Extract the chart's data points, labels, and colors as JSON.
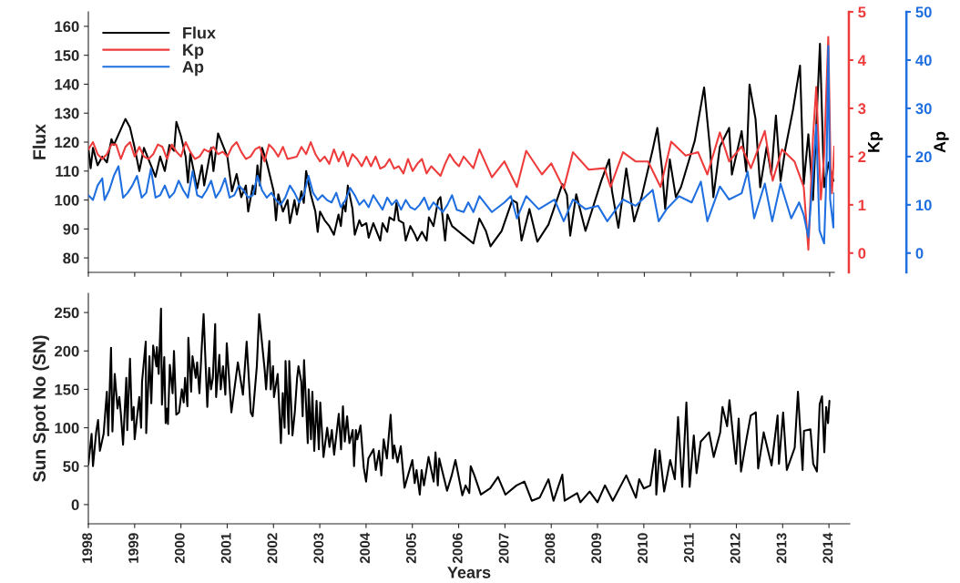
{
  "chart_data": [
    {
      "type": "line",
      "ylabel": "Flux",
      "y2label": "Kp",
      "y3label": "Ap",
      "legend": "top left",
      "tick_labels": "y",
      "grid": false,
      "xlim": [
        1998,
        2014.1
      ],
      "xticks": [
        1998,
        1999,
        2000,
        2001,
        2002,
        2003,
        2004,
        2005,
        2006,
        2007,
        2008,
        2009,
        2010,
        2011,
        2012,
        2013,
        2014
      ],
      "ylim": [
        75,
        165
      ],
      "yticks": [
        80,
        90,
        100,
        110,
        120,
        130,
        140,
        150,
        160
      ],
      "y2lim": [
        -0.4,
        5
      ],
      "y2ticks": [
        0,
        1,
        2,
        3,
        4,
        5
      ],
      "y3lim": [
        -4,
        50
      ],
      "y3ticks": [
        0,
        10,
        20,
        30,
        40,
        50
      ],
      "series": [
        {
          "name": "Flux",
          "color": "#000000",
          "axis": "y",
          "x": [
            1998.0,
            1998.05,
            1998.1,
            1998.2,
            1998.3,
            1998.4,
            1998.5,
            1998.55,
            1998.8,
            1998.9,
            1999.0,
            1999.1,
            1999.2,
            1999.35,
            1999.45,
            1999.55,
            1999.65,
            1999.75,
            1999.85,
            1999.9,
            2000.0,
            2000.1,
            2000.15,
            2000.2,
            2000.35,
            2000.45,
            2000.5,
            2000.65,
            2000.7,
            2000.8,
            2000.9,
            2001.0,
            2001.1,
            2001.2,
            2001.3,
            2001.4,
            2001.45,
            2001.55,
            2001.6,
            2001.65,
            2001.7,
            2001.75,
            2001.85,
            2002.0,
            2002.05,
            2002.1,
            2002.2,
            2002.3,
            2002.35,
            2002.45,
            2002.5,
            2002.6,
            2002.65,
            2002.7,
            2002.8,
            2002.9,
            2002.95,
            2003.0,
            2003.1,
            2003.2,
            2003.3,
            2003.4,
            2003.45,
            2003.5,
            2003.55,
            2003.6,
            2003.7,
            2003.75,
            2003.85,
            2003.9,
            2004.0,
            2004.05,
            2004.15,
            2004.3,
            2004.35,
            2004.45,
            2004.5,
            2004.6,
            2004.65,
            2004.7,
            2004.8,
            2004.85,
            2004.95,
            2005.05,
            2005.1,
            2005.2,
            2005.3,
            2005.35,
            2005.45,
            2005.55,
            2005.6,
            2005.7,
            2005.75,
            2005.85,
            2006.31,
            2006.44,
            2006.58,
            2006.68,
            2006.92,
            2007.15,
            2007.25,
            2007.35,
            2007.52,
            2007.69,
            2007.93,
            2008.23,
            2008.33,
            2008.4,
            2008.53,
            2008.73,
            2009.07,
            2009.24,
            2009.3,
            2009.44,
            2009.61,
            2009.78,
            2009.94,
            2010.18,
            2010.28,
            2010.38,
            2010.45,
            2010.55,
            2010.68,
            2010.79,
            2010.95,
            2011.09,
            2011.29,
            2011.42,
            2011.49,
            2011.63,
            2011.83,
            2011.89,
            2012.1,
            2012.2,
            2012.27,
            2012.4,
            2012.5,
            2012.64,
            2012.74,
            2012.84,
            2012.94,
            2013.04,
            2013.21,
            2013.36,
            2013.44,
            2013.54,
            2013.64,
            2013.79,
            2013.88,
            2013.98,
            2014.08
          ],
          "values": [
            118,
            111,
            118,
            112,
            115,
            113,
            121,
            119,
            128,
            125,
            118,
            110,
            118,
            112,
            108,
            115,
            110,
            119,
            117,
            127,
            122,
            115,
            106,
            116,
            104,
            112,
            105,
            118,
            110,
            123,
            119,
            115,
            103,
            109,
            101,
            105,
            96,
            105,
            102,
            112,
            105,
            118,
            113,
            103,
            93,
            102,
            96,
            100,
            92,
            100,
            95,
            103,
            99,
            110,
            102,
            96,
            89,
            96,
            93,
            91,
            88,
            95,
            91,
            99,
            96,
            105,
            97,
            88,
            93,
            91,
            92,
            87,
            92,
            86,
            92,
            89,
            94,
            93,
            99,
            93,
            92,
            86,
            91,
            88,
            86,
            89,
            86,
            94,
            91,
            100,
            101,
            86,
            95,
            91,
            85,
            93.6,
            89.3,
            84,
            89.3,
            100,
            99,
            86,
            96.9,
            85.6,
            91.5,
            105.5,
            101.7,
            87.7,
            102,
            89.3,
            106.6,
            114,
            103.3,
            90.4,
            110.9,
            92.6,
            101,
            117.4,
            124.9,
            110.9,
            96.9,
            114,
            101,
            104.4,
            113,
            120.6,
            138.9,
            117.4,
            101,
            118.4,
            124.9,
            108.8,
            123.8,
            109.8,
            139.9,
            128,
            104.4,
            118.4,
            108.8,
            129.2,
            106.6,
            117.4,
            131.3,
            146.4,
            105.5,
            122.7,
            100,
            154,
            104.4,
            113,
            106.6
          ]
        },
        {
          "name": "Kp",
          "color": "#ee3b3b",
          "axis": "y2",
          "x": [
            1998.0,
            1998.1,
            1998.2,
            1998.3,
            1998.4,
            1998.5,
            1998.6,
            1998.7,
            1998.8,
            1998.9,
            1999.0,
            1999.1,
            1999.2,
            1999.3,
            1999.4,
            1999.5,
            1999.6,
            1999.7,
            1999.8,
            1999.9,
            2000.0,
            2000.1,
            2000.2,
            2000.3,
            2000.4,
            2000.5,
            2000.6,
            2000.7,
            2000.8,
            2000.9,
            2001.0,
            2001.1,
            2001.2,
            2001.3,
            2001.4,
            2001.5,
            2001.6,
            2001.7,
            2001.8,
            2001.9,
            2002.0,
            2002.1,
            2002.2,
            2002.3,
            2002.5,
            2002.6,
            2002.7,
            2002.8,
            2002.9,
            2003.0,
            2003.1,
            2003.2,
            2003.3,
            2003.4,
            2003.5,
            2003.6,
            2003.7,
            2003.8,
            2003.9,
            2004.0,
            2004.1,
            2004.2,
            2004.3,
            2004.4,
            2004.5,
            2004.6,
            2004.7,
            2004.8,
            2004.9,
            2005.0,
            2005.1,
            2005.2,
            2005.3,
            2005.4,
            2005.5,
            2005.6,
            2005.7,
            2005.8,
            2005.9,
            2006.0,
            2006.1,
            2006.31,
            2006.44,
            2006.71,
            2006.98,
            2007.25,
            2007.45,
            2007.79,
            2007.99,
            2008.26,
            2008.46,
            2008.8,
            2009.14,
            2009.27,
            2009.54,
            2009.81,
            2010.08,
            2010.35,
            2010.58,
            2010.89,
            2011.16,
            2011.36,
            2011.63,
            2011.83,
            2012.1,
            2012.3,
            2012.6,
            2012.77,
            2012.97,
            2013.24,
            2013.44,
            2013.54,
            2013.64,
            2013.71,
            2013.81,
            2013.88,
            2013.97,
            2014.02,
            2014.05,
            2014.1
          ],
          "values": [
            2.15,
            2.3,
            2.05,
            1.95,
            2.05,
            2.25,
            2.25,
            1.95,
            2.2,
            2.3,
            2.0,
            2.2,
            2.0,
            1.95,
            2.05,
            2.25,
            2.2,
            1.95,
            2.25,
            2.1,
            2.0,
            2.3,
            2.1,
            1.95,
            2.0,
            2.15,
            2.1,
            2.2,
            2.05,
            2.1,
            2.0,
            2.2,
            2.3,
            2.1,
            1.95,
            2.0,
            2.15,
            2.2,
            1.9,
            2.25,
            2.15,
            2.0,
            2.2,
            1.95,
            2.0,
            2.2,
            2.05,
            2.3,
            2.05,
            1.9,
            2.0,
            1.85,
            2.15,
            1.9,
            2.1,
            1.8,
            2.05,
            1.95,
            1.8,
            2.0,
            1.8,
            2.0,
            1.75,
            1.8,
            1.95,
            1.75,
            1.8,
            1.65,
            1.95,
            1.7,
            1.85,
            1.95,
            1.65,
            1.8,
            1.7,
            1.6,
            1.85,
            2.05,
            1.9,
            1.8,
            2.0,
            1.76,
            2.15,
            1.57,
            1.9,
            1.37,
            2.12,
            1.63,
            1.86,
            1.34,
            2.09,
            1.73,
            1.76,
            1.37,
            2.09,
            1.9,
            1.9,
            1.37,
            2.31,
            2.02,
            2.09,
            1.63,
            2.5,
            1.9,
            2.21,
            1.76,
            2.53,
            1.5,
            2.15,
            1.9,
            1.37,
            0.07,
            2.4,
            3.44,
            1.11,
            2.02,
            4.48,
            1.76,
            1.24,
            2.21
          ]
        },
        {
          "name": "Ap",
          "color": "#1f6fe0",
          "axis": "y3",
          "x": [
            1998.0,
            1998.1,
            1998.2,
            1998.3,
            1998.35,
            1998.45,
            1998.55,
            1998.65,
            1998.75,
            1998.85,
            1998.95,
            1999.05,
            1999.15,
            1999.25,
            1999.35,
            1999.45,
            1999.55,
            1999.65,
            1999.75,
            1999.85,
            1999.95,
            2000.05,
            2000.15,
            2000.25,
            2000.35,
            2000.45,
            2000.55,
            2000.65,
            2000.75,
            2000.85,
            2000.95,
            2001.05,
            2001.15,
            2001.25,
            2001.35,
            2001.45,
            2001.55,
            2001.65,
            2001.75,
            2001.85,
            2001.95,
            2002.05,
            2002.15,
            2002.25,
            2002.35,
            2002.45,
            2002.55,
            2002.65,
            2002.75,
            2002.85,
            2002.95,
            2003.05,
            2003.15,
            2003.25,
            2003.35,
            2003.45,
            2003.55,
            2003.65,
            2003.75,
            2003.85,
            2003.95,
            2004.05,
            2004.15,
            2004.25,
            2004.35,
            2004.45,
            2004.55,
            2004.65,
            2004.75,
            2004.85,
            2004.95,
            2005.05,
            2005.15,
            2005.25,
            2005.35,
            2005.45,
            2005.55,
            2005.65,
            2005.75,
            2005.85,
            2005.95,
            2006.1,
            2006.2,
            2006.31,
            2006.44,
            2006.71,
            2006.98,
            2007.12,
            2007.25,
            2007.45,
            2007.72,
            2008.06,
            2008.26,
            2008.46,
            2008.73,
            2009.0,
            2009.2,
            2009.54,
            2009.81,
            2010.18,
            2010.31,
            2010.48,
            2010.75,
            2011.02,
            2011.22,
            2011.36,
            2011.63,
            2011.83,
            2012.1,
            2012.23,
            2012.37,
            2012.6,
            2012.76,
            2012.94,
            2013.17,
            2013.34,
            2013.44,
            2013.54,
            2013.61,
            2013.71,
            2013.78,
            2013.88,
            2013.93,
            2013.97,
            2014.01,
            2014.08,
            2014.1
          ],
          "values": [
            12,
            11,
            14,
            15.5,
            11,
            13,
            16,
            18,
            11.5,
            12.5,
            14,
            16,
            11.5,
            12.5,
            17.5,
            11.5,
            12,
            14,
            11.5,
            12.5,
            15,
            13,
            11.5,
            17,
            12,
            11.5,
            13,
            15,
            11.5,
            13,
            15.5,
            11.5,
            12,
            14,
            13,
            11.5,
            12,
            16,
            13,
            11.5,
            12.5,
            11,
            10,
            11.5,
            14,
            12.5,
            10.5,
            12,
            16,
            12.5,
            11,
            12,
            11,
            10.5,
            12.5,
            9.5,
            11,
            13.5,
            12,
            10,
            11,
            9.5,
            12,
            10.5,
            9,
            11.5,
            10,
            11,
            9,
            11,
            9.5,
            9,
            10,
            11.5,
            9,
            10.5,
            9.5,
            8.5,
            10,
            12,
            9,
            8.5,
            10.5,
            8.5,
            11.8,
            8.5,
            10.5,
            11.8,
            7.2,
            11.8,
            9.1,
            11.1,
            6.6,
            11.1,
            9.1,
            9.8,
            6.6,
            11.1,
            9.8,
            13.1,
            6.6,
            9.1,
            11.8,
            10.5,
            14.8,
            6.6,
            13.8,
            11.1,
            12.4,
            16.9,
            7.2,
            14.4,
            6.6,
            14.4,
            7.2,
            10.5,
            7.9,
            3.3,
            12.4,
            26.6,
            4.7,
            2.0,
            16.2,
            42.9,
            11.1,
            5.3,
            12.4
          ]
        }
      ]
    },
    {
      "type": "line",
      "xlabel": "Years",
      "ylabel": "Sun Spot No (SN)",
      "grid": false,
      "legend": false,
      "xlim": [
        1998,
        2014.45
      ],
      "xticks": [
        1998,
        1999,
        2000,
        2001,
        2002,
        2003,
        2004,
        2005,
        2006,
        2007,
        2008,
        2009,
        2010,
        2011,
        2012,
        2013,
        2014
      ],
      "ylim": [
        -25,
        275
      ],
      "yticks": [
        0,
        50,
        100,
        150,
        200,
        250
      ],
      "series": [
        {
          "color": "#000000",
          "x": [
            1998.0,
            1998.07,
            1998.1,
            1998.17,
            1998.21,
            1998.25,
            1998.33,
            1998.4,
            1998.43,
            1998.49,
            1998.52,
            1998.57,
            1998.63,
            1998.67,
            1998.7,
            1998.75,
            1998.82,
            1998.84,
            1998.9,
            1998.94,
            1998.98,
            1999.0,
            1999.1,
            1999.14,
            1999.16,
            1999.24,
            1999.25,
            1999.32,
            1999.36,
            1999.4,
            1999.47,
            1999.48,
            1999.52,
            1999.57,
            1999.59,
            1999.64,
            1999.67,
            1999.7,
            1999.72,
            1999.76,
            1999.82,
            1999.85,
            1999.9,
            1999.96,
            2000.02,
            2000.06,
            2000.09,
            2000.14,
            2000.16,
            2000.22,
            2000.25,
            2000.32,
            2000.35,
            2000.4,
            2000.45,
            2000.49,
            2000.57,
            2000.61,
            2000.65,
            2000.69,
            2000.74,
            2000.76,
            2000.83,
            2000.86,
            2000.91,
            2000.96,
            2000.99,
            2001.09,
            2001.23,
            2001.34,
            2001.42,
            2001.51,
            2001.55,
            2001.64,
            2001.69,
            2001.81,
            2001.84,
            2001.91,
            2001.94,
            2001.99,
            2002.01,
            2002.09,
            2002.16,
            2002.2,
            2002.24,
            2002.26,
            2002.33,
            2002.34,
            2002.41,
            2002.46,
            2002.51,
            2002.54,
            2002.6,
            2002.63,
            2002.66,
            2002.74,
            2002.76,
            2002.81,
            2002.84,
            2002.88,
            2002.93,
            2002.98,
            2003.01,
            2003.08,
            2003.16,
            2003.21,
            2003.26,
            2003.31,
            2003.41,
            2003.46,
            2003.5,
            2003.54,
            2003.59,
            2003.64,
            2003.71,
            2003.74,
            2003.78,
            2003.81,
            2003.88,
            2003.95,
            2004.0,
            2004.05,
            2004.16,
            2004.21,
            2004.28,
            2004.33,
            2004.38,
            2004.45,
            2004.53,
            2004.58,
            2004.61,
            2004.68,
            2004.75,
            2004.83,
            2005.0,
            2005.05,
            2005.09,
            2005.16,
            2005.2,
            2005.25,
            2005.35,
            2005.46,
            2005.5,
            2005.55,
            2005.58,
            2005.75,
            2005.85,
            2005.93,
            2006.08,
            2006.15,
            2006.23,
            2006.26,
            2006.34,
            2006.48,
            2006.68,
            2006.85,
            2007.01,
            2007.25,
            2007.42,
            2007.58,
            2007.75,
            2007.94,
            2008.05,
            2008.24,
            2008.29,
            2008.56,
            2008.63,
            2008.83,
            2009.0,
            2009.16,
            2009.33,
            2009.62,
            2009.83,
            2009.9,
            2010.0,
            2010.14,
            2010.25,
            2010.27,
            2010.34,
            2010.44,
            2010.57,
            2010.67,
            2010.74,
            2010.83,
            2010.92,
            2010.99,
            2011.08,
            2011.14,
            2011.23,
            2011.41,
            2011.51,
            2011.65,
            2011.7,
            2011.8,
            2011.85,
            2011.99,
            2012.05,
            2012.1,
            2012.22,
            2012.31,
            2012.42,
            2012.47,
            2012.59,
            2012.76,
            2012.89,
            2012.92,
            2013.01,
            2013.09,
            2013.26,
            2013.33,
            2013.43,
            2013.46,
            2013.6,
            2013.66,
            2013.74,
            2013.8,
            2013.85,
            2013.9,
            2013.94,
            2013.98,
            2014.01
          ],
          "values": [
            52,
            92,
            50,
            95,
            110,
            70,
            92,
            147,
            90,
            204,
            95,
            170,
            125,
            140,
            120,
            78,
            165,
            97,
            190,
            110,
            127,
            85,
            140,
            100,
            160,
            212,
            93,
            193,
            132,
            207,
            180,
            205,
            170,
            255,
            130,
            192,
            106,
            125,
            105,
            182,
            145,
            200,
            117,
            120,
            150,
            133,
            165,
            128,
            217,
            147,
            193,
            165,
            185,
            145,
            205,
            248,
            127,
            178,
            150,
            165,
            235,
            140,
            195,
            150,
            180,
            143,
            210,
            120,
            185,
            143,
            212,
            120,
            115,
            180,
            248,
            175,
            150,
            213,
            150,
            180,
            140,
            170,
            80,
            145,
            100,
            187,
            92,
            187,
            90,
            120,
            165,
            180,
            160,
            115,
            188,
            80,
            150,
            85,
            147,
            70,
            135,
            72,
            133,
            62,
            100,
            75,
            97,
            65,
            118,
            72,
            128,
            82,
            115,
            80,
            97,
            50,
            97,
            85,
            103,
            48,
            30,
            60,
            72,
            45,
            70,
            38,
            85,
            60,
            117,
            60,
            77,
            55,
            76,
            22,
            58,
            28,
            45,
            13,
            45,
            25,
            62,
            30,
            68,
            25,
            60,
            18,
            38,
            58,
            12,
            25,
            15,
            50,
            38,
            13,
            21,
            36,
            13,
            25,
            30,
            5,
            9,
            33,
            5,
            39,
            5,
            15,
            3,
            17,
            3,
            25,
            5,
            38,
            9,
            33,
            21,
            25,
            72,
            13,
            70,
            17,
            58,
            33,
            114,
            23,
            133,
            23,
            90,
            41,
            82,
            94,
            62,
            94,
            127,
            102,
            136,
            53,
            112,
            43,
            86,
            116,
            120,
            47,
            94,
            51,
            116,
            53,
            120,
            45,
            74,
            147,
            45,
            96,
            98,
            53,
            43,
            131,
            141,
            68,
            127,
            106,
            135
          ]
        }
      ]
    }
  ]
}
